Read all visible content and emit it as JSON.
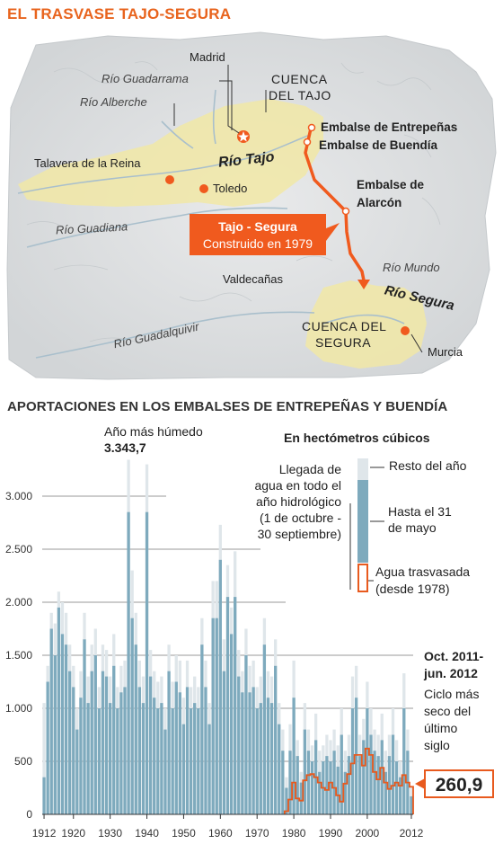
{
  "header": {
    "title": "EL TRASVASE TAJO-SEGURA"
  },
  "map": {
    "labels": {
      "madrid": "Madrid",
      "rio_guadarrama": "Río Guadarrama",
      "rio_alberche": "Río Alberche",
      "cuenca_tajo_1": "CUENCA",
      "cuenca_tajo_2": "DEL TAJO",
      "embalse_entrepenas": "Embalse de Entrepeñas",
      "embalse_buendia": "Embalse de Buendía",
      "rio_tajo": "Río Tajo",
      "talavera": "Talavera de la Reina",
      "toledo": "Toledo",
      "embalse_alarcon_1": "Embalse de",
      "embalse_alarcon_2": "Alarcón",
      "rio_guadiana": "Río Guadiana",
      "trasvase_name": "Tajo - Segura",
      "trasvase_built": "Construido en 1979",
      "rio_mundo": "Río Mundo",
      "valdecanas": "Valdecañas",
      "rio_segura": "Río Segura",
      "rio_guadalquivir": "Río Guadalquivir",
      "cuenca_segura_1": "CUENCA DEL",
      "cuenca_segura_2": "SEGURA",
      "murcia": "Murcia"
    },
    "colors": {
      "basin": "#f1e8a6",
      "route": "#f05a1e",
      "city": "#f05a1e",
      "relief": "#d8dadb",
      "river": "#b0c4d0"
    }
  },
  "chart_title": "APORTACIONES EN LOS EMBALSES DE ENTREPEÑAS Y BUENDÍA",
  "chart_data": {
    "type": "bar",
    "title": "APORTACIONES EN LOS EMBALSES DE ENTREPEÑAS Y BUENDÍA",
    "unit_label": "En hectómetros cúbicos",
    "ylim": [
      0,
      3500
    ],
    "y_ticks": [
      0,
      500,
      1000,
      1500,
      2000,
      2500,
      3000
    ],
    "y_tick_labels": [
      "0",
      "500",
      "1.000",
      "1.500",
      "2.000",
      "2.500",
      "3.000"
    ],
    "x_ticks": [
      1912,
      1920,
      1930,
      1940,
      1950,
      1960,
      1970,
      1980,
      1990,
      2000,
      2012
    ],
    "x_tick_labels": [
      "1912",
      "1920",
      "1930",
      "1940",
      "1950",
      "1960",
      "1970",
      "1980",
      "1990",
      "2000",
      "2012"
    ],
    "years": [
      1912,
      1913,
      1914,
      1915,
      1916,
      1917,
      1918,
      1919,
      1920,
      1921,
      1922,
      1923,
      1924,
      1925,
      1926,
      1927,
      1928,
      1929,
      1930,
      1931,
      1932,
      1933,
      1934,
      1935,
      1936,
      1937,
      1938,
      1939,
      1940,
      1941,
      1942,
      1943,
      1944,
      1945,
      1946,
      1947,
      1948,
      1949,
      1950,
      1951,
      1952,
      1953,
      1954,
      1955,
      1956,
      1957,
      1958,
      1959,
      1960,
      1961,
      1962,
      1963,
      1964,
      1965,
      1966,
      1967,
      1968,
      1969,
      1970,
      1971,
      1972,
      1973,
      1974,
      1975,
      1976,
      1977,
      1978,
      1979,
      1980,
      1981,
      1982,
      1983,
      1984,
      1985,
      1986,
      1987,
      1988,
      1989,
      1990,
      1991,
      1992,
      1993,
      1994,
      1995,
      1996,
      1997,
      1998,
      1999,
      2000,
      2001,
      2002,
      2003,
      2004,
      2005,
      2006,
      2007,
      2008,
      2009,
      2010,
      2011,
      2012
    ],
    "series": [
      {
        "name": "Hasta el 31 de mayo",
        "color": "#7eaabd",
        "values": [
          350,
          1250,
          1750,
          1500,
          1950,
          1700,
          1600,
          1350,
          1200,
          800,
          1100,
          1650,
          1050,
          1350,
          1500,
          1000,
          1350,
          1300,
          1050,
          1400,
          1000,
          1150,
          1200,
          2850,
          1850,
          1600,
          1200,
          1050,
          2850,
          1300,
          1100,
          1000,
          1050,
          800,
          1350,
          1000,
          1250,
          1150,
          850,
          1200,
          1000,
          1050,
          1000,
          1600,
          1200,
          850,
          1850,
          1850,
          2400,
          1350,
          2050,
          1700,
          2050,
          1300,
          1150,
          1500,
          1150,
          1200,
          1000,
          1050,
          1600,
          1100,
          1050,
          1400,
          850,
          600,
          250,
          600,
          1100,
          550,
          300,
          800,
          600,
          500,
          700,
          400,
          500,
          550,
          500,
          600,
          450,
          750,
          400,
          550,
          1000,
          1100,
          550,
          700,
          1000,
          750,
          600,
          550,
          700,
          400,
          550,
          750,
          500,
          350,
          1000,
          600,
          170
        ]
      },
      {
        "name": "Resto del año",
        "values": [
          1050,
          1400,
          1900,
          1800,
          2100,
          2000,
          1900,
          1600,
          1400,
          1000,
          1350,
          1900,
          1300,
          1600,
          1750,
          1200,
          1600,
          1550,
          1300,
          1700,
          1200,
          1400,
          1450,
          3343.7,
          2300,
          1900,
          1450,
          1300,
          3300,
          1550,
          1350,
          1250,
          1300,
          1000,
          1600,
          1250,
          1500,
          1450,
          1100,
          1450,
          1200,
          1300,
          1200,
          1850,
          1450,
          1050,
          2200,
          2200,
          2730,
          1650,
          2350,
          1950,
          2480,
          1550,
          1350,
          1750,
          1400,
          1450,
          1200,
          1300,
          1850,
          1350,
          1300,
          1650,
          1050,
          800,
          350,
          850,
          1450,
          700,
          400,
          1050,
          800,
          650,
          950,
          600,
          650,
          750,
          700,
          800,
          650,
          1000,
          600,
          750,
          1300,
          1400,
          750,
          900,
          1250,
          1000,
          800,
          750,
          950,
          600,
          750,
          1000,
          700,
          500,
          1330,
          800,
          260.9
        ]
      },
      {
        "name": "Agua trasvasada (desde 1978)",
        "values": [
          0,
          0,
          0,
          0,
          0,
          0,
          0,
          0,
          0,
          0,
          0,
          0,
          0,
          0,
          0,
          0,
          0,
          0,
          0,
          0,
          0,
          0,
          0,
          0,
          0,
          0,
          0,
          0,
          0,
          0,
          0,
          0,
          0,
          0,
          0,
          0,
          0,
          0,
          0,
          0,
          0,
          0,
          0,
          0,
          0,
          0,
          0,
          0,
          0,
          0,
          0,
          0,
          0,
          0,
          0,
          0,
          0,
          0,
          0,
          0,
          0,
          0,
          0,
          0,
          0,
          0,
          30,
          140,
          300,
          150,
          130,
          320,
          370,
          380,
          350,
          300,
          250,
          230,
          300,
          250,
          180,
          120,
          290,
          380,
          480,
          560,
          560,
          460,
          620,
          560,
          400,
          330,
          440,
          300,
          240,
          270,
          300,
          270,
          370,
          300,
          260
        ]
      }
    ],
    "annotations": {
      "wettest_label": "Año más húmedo",
      "wettest_value": "3.343,7",
      "driest_period_1": "Oct. 2011-",
      "driest_period_2": "jun. 2012",
      "driest_text_1": "Ciclo más",
      "driest_text_2": "seco del",
      "driest_text_3": "último",
      "driest_text_4": "siglo",
      "driest_value": "260,9"
    },
    "legend": {
      "desc_1": "Llegada de",
      "desc_2": "agua en todo el",
      "desc_3": "año hidrológico",
      "desc_4": "(1 de octubre -",
      "desc_5": "30 septiembre)",
      "resto": "Resto del año",
      "hasta_1": "Hasta el 31",
      "hasta_2": "de mayo",
      "trasv_1": "Agua trasvasada",
      "trasv_2": "(desde 1978)"
    },
    "colors": {
      "total": "#dfe6ea",
      "spring": "#7eaabd",
      "transfer": "#e85a1e",
      "grid": "#9a9a9a"
    }
  }
}
